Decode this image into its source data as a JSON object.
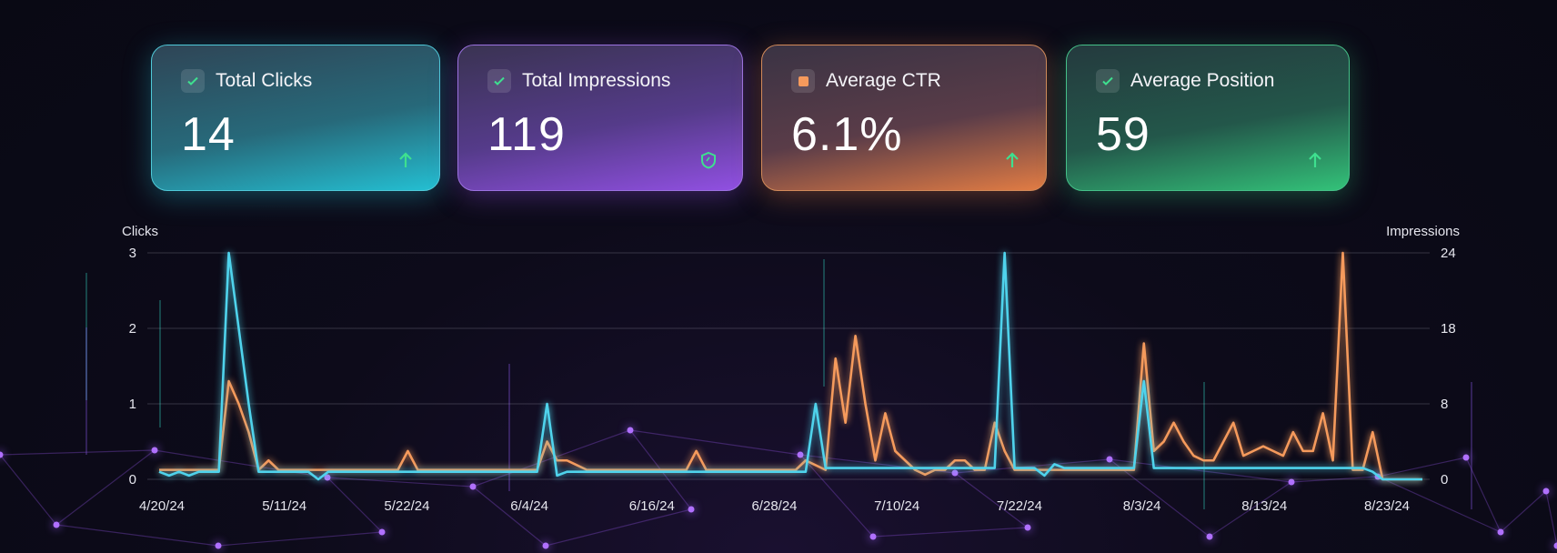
{
  "cards": [
    {
      "title": "Total Clicks",
      "value": "14",
      "status_icon": "check-icon",
      "trend_icon": "arrow-up-icon",
      "accent": "#24bfd2"
    },
    {
      "title": "Total Impressions",
      "value": "119",
      "status_icon": "check-icon",
      "trend_icon": "shield-icon",
      "accent": "#9150e2"
    },
    {
      "title": "Average CTR",
      "value": "6.1%",
      "status_icon": "square-icon",
      "trend_icon": "arrow-up-icon",
      "accent": "#e27c44"
    },
    {
      "title": "Average Position",
      "value": "59",
      "status_icon": "check-icon",
      "trend_icon": "arrow-up-icon",
      "accent": "#33c279"
    }
  ],
  "chart_data": {
    "type": "line",
    "left_axis": {
      "label": "Clicks",
      "ticks": [
        0,
        1,
        2,
        3
      ],
      "range": [
        0,
        3
      ]
    },
    "right_axis": {
      "label": "Impressions",
      "ticks": [
        0,
        8,
        18,
        24
      ]
    },
    "x_tick_labels": [
      "4/20/24",
      "5/11/24",
      "5/22/24",
      "6/4/24",
      "6/16/24",
      "6/28/24",
      "7/10/24",
      "7/22/24",
      "8/3/24",
      "8/13/24",
      "8/23/24"
    ],
    "grid": true,
    "series": [
      {
        "axis": "left",
        "color": "#4fd3ec",
        "values": [
          0.1,
          0.05,
          0.1,
          0.05,
          0.1,
          0.1,
          0.1,
          3,
          2,
          1,
          0.1,
          0.1,
          0.1,
          0.1,
          0.1,
          0.1,
          0,
          0.1,
          0.1,
          0.1,
          0.1,
          0.1,
          0.1,
          0.1,
          0.1,
          0.1,
          0.1,
          0.1,
          0.1,
          0.1,
          0.1,
          0.1,
          0.1,
          0.1,
          0.1,
          0.1,
          0.1,
          0.1,
          0.1,
          1,
          0.05,
          0.1,
          0.1,
          0.1,
          0.1,
          0.1,
          0.1,
          0.1,
          0.1,
          0.1,
          0.1,
          0.1,
          0.1,
          0.1,
          0.1,
          0.1,
          0.1,
          0.1,
          0.1,
          0.1,
          0.1,
          0.1,
          0.1,
          0.1,
          0.1,
          0.1,
          1,
          0.15,
          0.15,
          0.15,
          0.15,
          0.15,
          0.15,
          0.15,
          0.15,
          0.15,
          0.15,
          0.15,
          0.15,
          0.15,
          0.15,
          0.15,
          0.15,
          0.15,
          0.15,
          3,
          0.15,
          0.15,
          0.15,
          0.05,
          0.2,
          0.15,
          0.15,
          0.15,
          0.15,
          0.15,
          0.15,
          0.15,
          0.15,
          1.3,
          0.15,
          0.15,
          0.15,
          0.15,
          0.15,
          0.15,
          0.15,
          0.15,
          0.15,
          0.15,
          0.15,
          0.15,
          0.15,
          0.15,
          0.15,
          0.15,
          0.15,
          0.15,
          0.15,
          0.15,
          0.15,
          0.15,
          0.1,
          0,
          0,
          0,
          0,
          0
        ]
      },
      {
        "axis": "right",
        "color": "#f59a5c",
        "values": [
          1,
          1,
          1,
          1,
          1,
          1,
          1,
          11,
          8,
          5,
          1,
          2,
          1,
          1,
          1,
          1,
          1,
          1,
          1,
          1,
          1,
          1,
          1,
          1,
          1,
          3,
          1,
          1,
          1,
          1,
          1,
          1,
          1,
          1,
          1,
          1,
          1,
          1,
          1,
          4,
          2,
          2,
          1.5,
          1,
          1,
          1,
          1,
          1,
          1,
          1,
          1,
          1,
          1,
          1,
          3,
          1,
          1,
          1,
          1,
          1,
          1,
          1,
          1,
          1,
          1,
          2,
          1.5,
          1,
          14,
          6,
          17,
          8,
          2,
          7,
          3,
          2,
          1,
          0.5,
          1,
          1,
          2,
          2,
          1,
          1,
          6,
          3,
          1,
          1,
          1,
          1,
          1,
          1,
          1,
          1,
          1,
          1,
          1,
          1,
          1,
          16,
          3,
          4,
          6,
          4,
          2.5,
          2,
          2,
          4,
          6,
          2.5,
          3,
          3.5,
          3,
          2.5,
          5,
          3,
          3,
          7,
          2,
          24,
          1,
          1,
          5,
          0,
          0,
          0,
          0,
          0
        ]
      }
    ]
  }
}
